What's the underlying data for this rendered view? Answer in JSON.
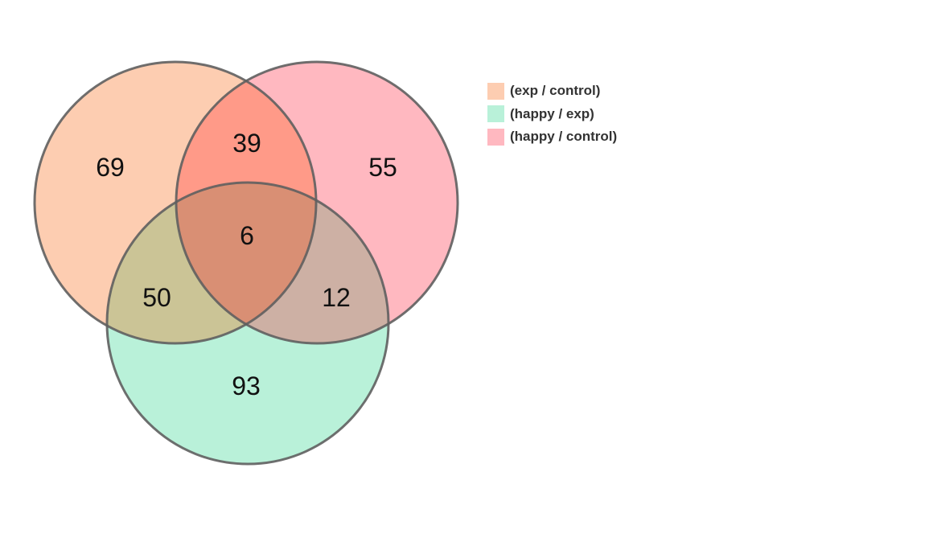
{
  "sets": [
    {
      "id": "exp-control",
      "label": "(exp / control)",
      "color": "#FDCDB1"
    },
    {
      "id": "happy-exp",
      "label": "(happy / exp)",
      "color": "#B9F1D9"
    },
    {
      "id": "happy-control",
      "label": "(happy / control)",
      "color": "#FFB8C0"
    }
  ],
  "regions": {
    "exp_control_only": "69",
    "happy_control_only": "55",
    "happy_exp_only": "93",
    "exp_control_and_happy_control": "39",
    "exp_control_and_happy_exp": "50",
    "happy_exp_and_happy_control": "12",
    "all_three": "6"
  }
}
